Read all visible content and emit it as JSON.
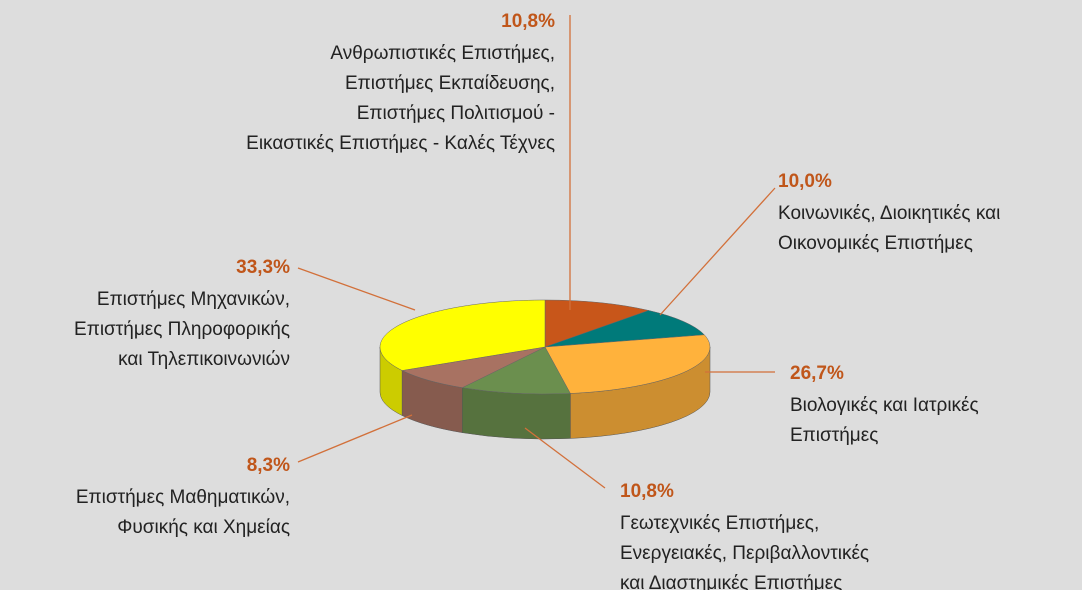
{
  "chart_data": {
    "type": "pie",
    "categories": [
      [
        "Ανθρωπιστικές Επιστήμες,",
        "Επιστήμες Εκπαίδευσης,",
        "Επιστήμες Πολιτισμού -",
        "Εικαστικές Επιστήμες - Καλές Τέχνες"
      ],
      [
        "Κοινωνικές, Διοικητικές και",
        "Οικονομικές Επιστήμες"
      ],
      [
        "Βιολογικές και Ιατρικές",
        "Επιστήμες"
      ],
      [
        "Γεωτεχνικές Επιστήμες,",
        "Ενεργειακές, Περιβαλλοντικές",
        "και Διαστημικές Επιστήμες"
      ],
      [
        "Επιστήμες Μαθηματικών,",
        "Φυσικής και Χημείας"
      ],
      [
        "Επιστήμες Μηχανικών,",
        "Επιστήμες Πληροφορικής",
        "και Τηλεπικοινωνιών"
      ]
    ],
    "values": [
      10.8,
      10.0,
      26.7,
      10.8,
      8.3,
      33.3
    ],
    "value_labels": [
      "10,8%",
      "10,0%",
      "26,7%",
      "10,8%",
      "8,3%",
      "33,3%"
    ],
    "colors": [
      "#c8561a",
      "#007a7a",
      "#ffb23c",
      "#6b8f4e",
      "#a87262",
      "#ffff00"
    ]
  }
}
